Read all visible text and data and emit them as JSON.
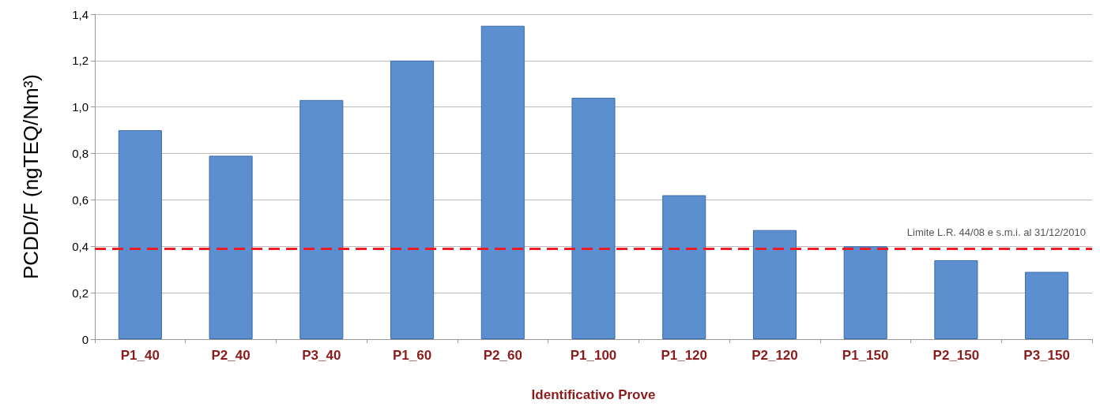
{
  "chart_data": {
    "type": "bar",
    "xlabel": "Identificativo Prove",
    "ylabel": "PCDD/F (ngTEQ/Nm³)",
    "categories": [
      "P1_40",
      "P2_40",
      "P3_40",
      "P1_60",
      "P2_60",
      "P1_100",
      "P1_120",
      "P2_120",
      "P1_150",
      "P2_150",
      "P3_150"
    ],
    "values": [
      0.9,
      0.79,
      1.03,
      1.2,
      1.35,
      1.04,
      0.62,
      0.47,
      0.4,
      0.34,
      0.29
    ],
    "color": "#5b8fd0",
    "ylim": [
      0,
      1.4
    ],
    "yticks": [
      0,
      {
        "value": 0.2,
        "label": "0,2"
      },
      {
        "value": 0.4,
        "label": "0,4"
      },
      {
        "value": 0.6,
        "label": "0,6"
      },
      {
        "value": 0.8,
        "label": "0,8"
      },
      {
        "value": 1,
        "label": "1,0"
      },
      {
        "value": 1.2,
        "label": "1,2"
      },
      {
        "value": 1.4,
        "label": "1,4"
      }
    ],
    "grid": "y",
    "ref_lines": [
      {
        "axis": "y",
        "value": 0.39,
        "label": "Limite L.R. 44/08 e s.m.i. al 31/12/2010",
        "color": "#ee1c25",
        "line_style": "dashed"
      }
    ]
  }
}
